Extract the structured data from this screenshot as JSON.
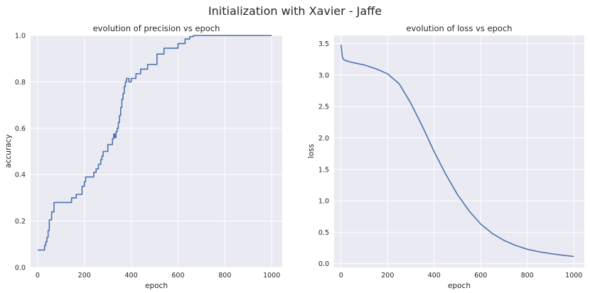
{
  "figure": {
    "title": "Initialization with Xavier - Jaffe"
  },
  "chart_data": [
    {
      "type": "line",
      "title": "evolution of precision vs epoch",
      "xlabel": "epoch",
      "ylabel": "accuracy",
      "xlim": [
        -30,
        1045
      ],
      "ylim": [
        0.0,
        1.0
      ],
      "xticks": [
        0,
        200,
        400,
        600,
        800,
        1000
      ],
      "yticks": [
        0.0,
        0.2,
        0.4,
        0.6,
        0.8,
        1.0
      ],
      "tick_labels_x": [
        "0",
        "200",
        "400",
        "600",
        "800",
        "1000"
      ],
      "tick_labels_y": [
        "0.0",
        "0.2",
        "0.4",
        "0.6",
        "0.8",
        "1.0"
      ],
      "grid": true,
      "series": [
        {
          "color": "#4c72b0",
          "step": true,
          "x": [
            0,
            30,
            35,
            40,
            45,
            50,
            60,
            70,
            145,
            165,
            190,
            200,
            205,
            240,
            250,
            260,
            270,
            275,
            280,
            300,
            320,
            325,
            330,
            335,
            340,
            345,
            350,
            355,
            360,
            365,
            370,
            375,
            380,
            390,
            400,
            420,
            440,
            470,
            510,
            540,
            600,
            630,
            650,
            665,
            1000
          ],
          "y": [
            0.075,
            0.095,
            0.11,
            0.13,
            0.16,
            0.205,
            0.24,
            0.28,
            0.3,
            0.315,
            0.35,
            0.37,
            0.39,
            0.41,
            0.425,
            0.445,
            0.465,
            0.48,
            0.5,
            0.53,
            0.555,
            0.575,
            0.56,
            0.585,
            0.6,
            0.625,
            0.655,
            0.69,
            0.725,
            0.75,
            0.78,
            0.8,
            0.815,
            0.8,
            0.815,
            0.835,
            0.855,
            0.875,
            0.92,
            0.945,
            0.965,
            0.985,
            0.995,
            1.0,
            1.0
          ]
        }
      ]
    },
    {
      "type": "line",
      "title": "evolution of loss vs epoch",
      "xlabel": "epoch",
      "ylabel": "loss",
      "xlim": [
        -30,
        1045
      ],
      "ylim": [
        -0.06,
        3.63
      ],
      "xticks": [
        0,
        200,
        400,
        600,
        800,
        1000
      ],
      "yticks": [
        0.0,
        0.5,
        1.0,
        1.5,
        2.0,
        2.5,
        3.0,
        3.5
      ],
      "tick_labels_x": [
        "0",
        "200",
        "400",
        "600",
        "800",
        "1000"
      ],
      "tick_labels_y": [
        "0.0",
        "0.5",
        "1.0",
        "1.5",
        "2.0",
        "2.5",
        "3.0",
        "3.5"
      ],
      "grid": true,
      "series": [
        {
          "color": "#4c72b0",
          "step": false,
          "x": [
            0,
            5,
            10,
            20,
            50,
            100,
            150,
            200,
            250,
            300,
            350,
            400,
            450,
            500,
            550,
            600,
            650,
            700,
            750,
            800,
            850,
            900,
            950,
            1000
          ],
          "y": [
            3.48,
            3.3,
            3.25,
            3.23,
            3.2,
            3.16,
            3.1,
            3.02,
            2.86,
            2.55,
            2.18,
            1.78,
            1.42,
            1.1,
            0.84,
            0.63,
            0.48,
            0.37,
            0.29,
            0.23,
            0.19,
            0.16,
            0.135,
            0.115
          ]
        }
      ]
    }
  ]
}
